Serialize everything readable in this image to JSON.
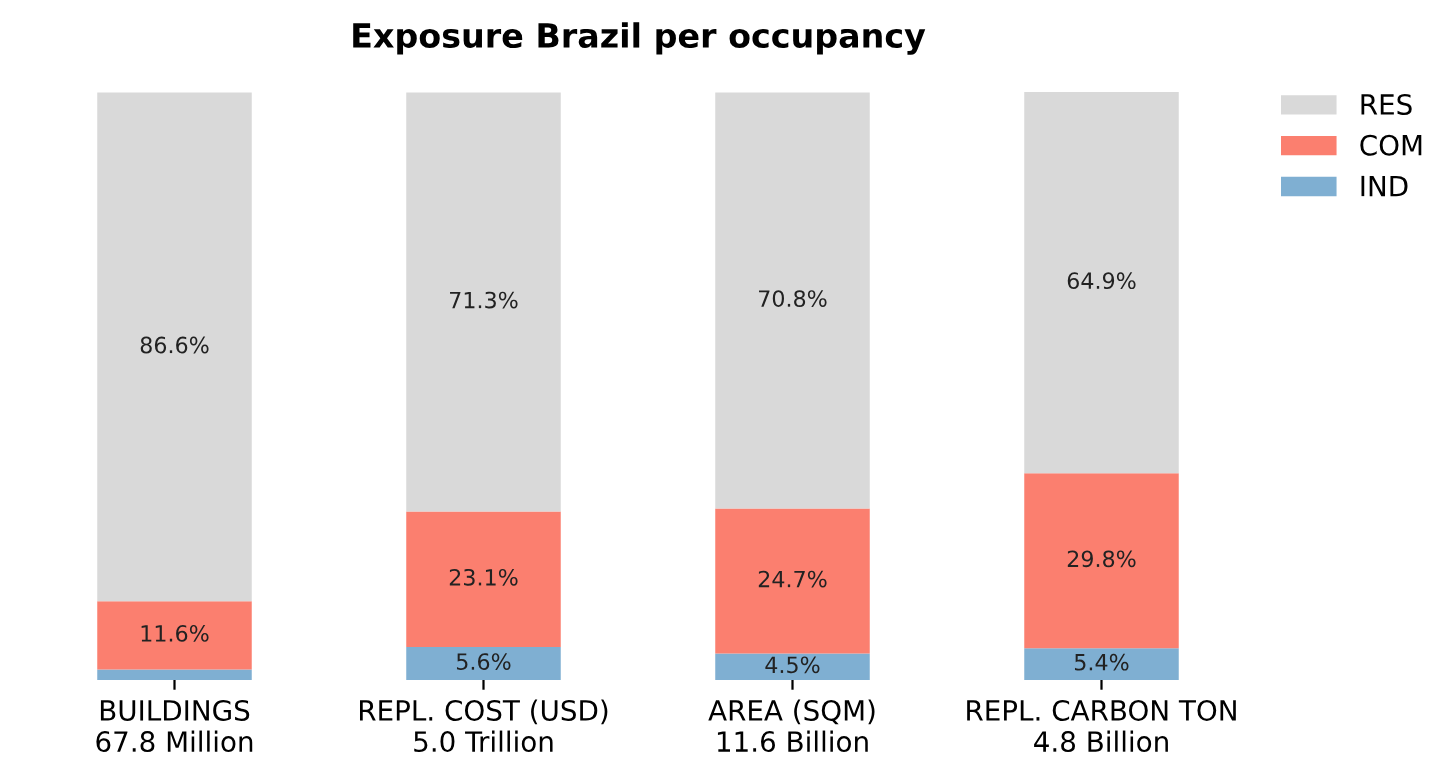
{
  "chart_data": {
    "type": "bar",
    "title": "Exposure Brazil per occupancy",
    "categories": [
      "BUILDINGS\n67.8 Million",
      "REPL. COST (USD)\n5.0 Trillion",
      "AREA (SQM)\n11.6 Billion",
      "REPL. CARBON TON\n4.8 Billion"
    ],
    "stacked": true,
    "legend": "top right",
    "series": [
      {
        "name": "IND",
        "color": "#7fafd2",
        "values": [
          1.8,
          5.6,
          4.5,
          5.4
        ],
        "value_labels": [
          null,
          "5.6%",
          "4.5%",
          "5.4%"
        ]
      },
      {
        "name": "COM",
        "color": "#fb7f6f",
        "values": [
          11.6,
          23.1,
          24.7,
          29.8
        ],
        "value_labels": [
          "11.6%",
          "23.1%",
          "24.7%",
          "29.8%"
        ]
      },
      {
        "name": "RES",
        "color": "#d9d9d9",
        "values": [
          86.6,
          71.3,
          70.8,
          64.9
        ],
        "value_labels": [
          "86.6%",
          "71.3%",
          "70.8%",
          "64.9%"
        ]
      }
    ]
  }
}
